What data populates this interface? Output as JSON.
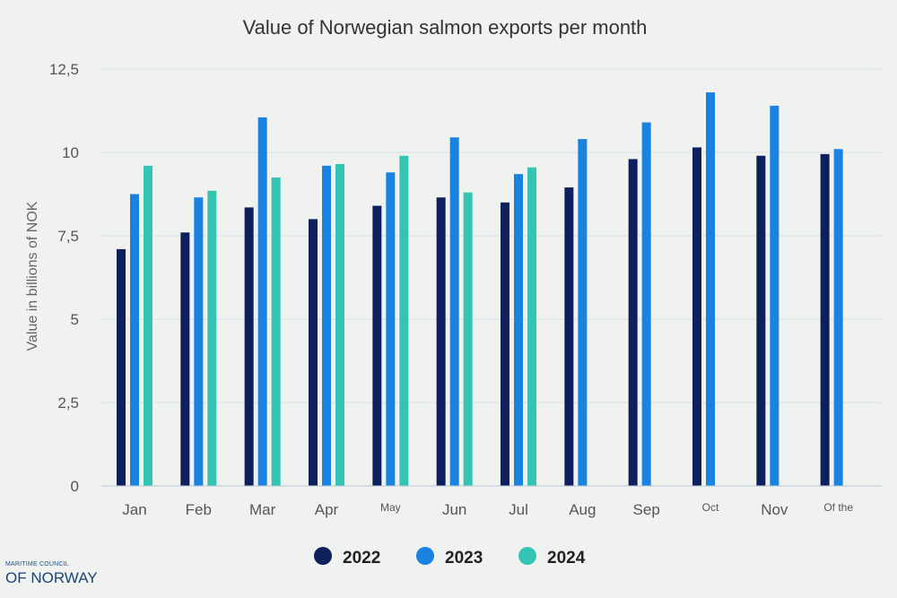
{
  "chart_data": {
    "type": "bar",
    "title": "Value of Norwegian salmon exports per month",
    "ylabel": "Value in billions of NOK",
    "ylim": [
      0,
      12.5
    ],
    "yticks": [
      "0",
      "2,5",
      "5",
      "7,5",
      "10",
      "12,5"
    ],
    "categories": [
      "Jan",
      "Feb",
      "Mar",
      "Apr",
      "May",
      "Jun",
      "Jul",
      "Aug",
      "Sep",
      "Oct",
      "Nov",
      "Of the"
    ],
    "series": [
      {
        "name": "2022",
        "color": "#0d1f5c",
        "values": [
          7.1,
          7.6,
          8.35,
          8.0,
          8.4,
          8.65,
          8.5,
          8.95,
          9.8,
          10.15,
          9.9,
          9.95
        ]
      },
      {
        "name": "2023",
        "color": "#1a82e0",
        "values": [
          8.75,
          8.65,
          11.05,
          9.6,
          9.4,
          10.45,
          9.35,
          10.4,
          10.9,
          11.8,
          11.4,
          10.1
        ]
      },
      {
        "name": "2024",
        "color": "#33c4b4",
        "values": [
          9.6,
          8.85,
          9.25,
          9.65,
          9.9,
          8.8,
          9.55,
          null,
          null,
          null,
          null,
          null
        ]
      }
    ],
    "grid": true,
    "legend_position": "bottom"
  },
  "logo": {
    "line1": "MARITIME COUNCIL",
    "line2": "OF NORWAY"
  }
}
